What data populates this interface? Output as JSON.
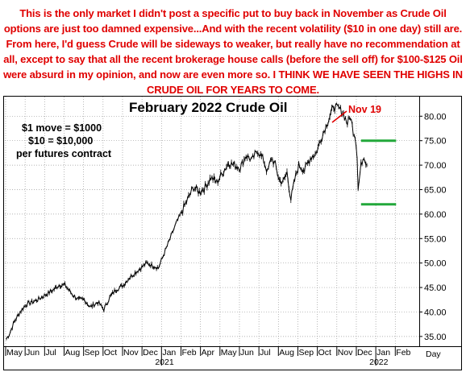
{
  "commentary": "This is the only market I didn't post a specific put to buy back in November as Crude Oil options are just too damned expensive...And with the recent volatility ($10 in one day) still are. From here, I'd guess Crude will be sideways to weaker, but really have no recommendation at all, except to say that all the recent brokerage house calls (before the sell off) for $100-$125 Oil were absurd in my opinion, and now are even more so. I THINK WE HAVE SEEN THE HIGHS IN CRUDE OIL FOR YEARS TO COME.",
  "colors": {
    "text_accent": "#e00000",
    "level_lines": "#22a83a",
    "price": "#000000",
    "grid": "#9a9a9a"
  },
  "chart_data": {
    "type": "line",
    "title": "February 2022 Crude Oil",
    "notes": [
      "$1 move = $1000",
      "$10 = $10,000",
      "per futures contract"
    ],
    "ylim": [
      33,
      84
    ],
    "y_ticks": [
      "35.00",
      "40.00",
      "45.00",
      "50.00",
      "55.00",
      "60.00",
      "65.00",
      "70.00",
      "75.00",
      "80.00"
    ],
    "y_tick_values": [
      35,
      40,
      45,
      50,
      55,
      60,
      65,
      70,
      75,
      80
    ],
    "x_months": [
      "May",
      "Jun",
      "Jul",
      "Aug",
      "Sep",
      "Oct",
      "Nov",
      "Dec",
      "Jan",
      "Feb",
      "Apr",
      "May",
      "Jun",
      "Jul",
      "Aug",
      "Sep",
      "Oct",
      "Nov",
      "Dec",
      "Jan",
      "Feb"
    ],
    "x_years": [
      "2021",
      "2022"
    ],
    "x_axis_label": "Day",
    "series": [
      {
        "month_index": [
          0,
          0.15,
          0.4,
          0.7,
          1.0,
          1.3,
          1.6,
          2.0,
          2.4,
          2.7,
          3.0,
          3.4,
          3.7,
          4.0,
          4.3,
          4.7,
          5.0,
          5.3,
          5.6,
          6.0,
          6.3,
          6.6,
          6.9,
          7.2,
          7.5,
          7.8,
          8.1,
          8.4,
          8.7,
          9.0,
          9.3,
          9.6,
          9.9,
          10.2,
          10.5,
          10.8,
          11.1,
          11.4,
          11.7,
          12.0,
          12.3,
          12.6,
          12.9,
          13.2,
          13.4,
          13.6,
          13.8,
          14.0,
          14.2,
          14.4,
          14.6,
          14.8,
          15.0,
          15.3,
          15.6,
          15.9,
          16.2,
          16.5,
          16.8,
          17.1,
          17.3,
          17.5,
          17.65,
          17.8,
          17.9,
          18.0,
          18.05,
          18.2,
          18.35,
          18.5
        ],
        "price": [
          34.5,
          35.5,
          38.0,
          40.0,
          41.5,
          42.0,
          42.5,
          43.5,
          44.5,
          45.5,
          45.5,
          43.5,
          42.5,
          42.5,
          41.0,
          42.0,
          40.5,
          43.0,
          44.5,
          45.5,
          47.0,
          48.0,
          49.0,
          50.0,
          49.5,
          49.0,
          52.0,
          55.0,
          58.0,
          60.5,
          63.0,
          65.5,
          64.5,
          65.5,
          67.5,
          66.5,
          68.5,
          70.5,
          70.0,
          69.5,
          72.0,
          71.0,
          73.0,
          71.0,
          68.5,
          71.5,
          70.0,
          67.0,
          66.5,
          68.5,
          63.0,
          67.0,
          70.0,
          69.0,
          71.5,
          72.5,
          76.0,
          79.0,
          82.0,
          81.5,
          80.5,
          78.5,
          80.0,
          77.0,
          76.0,
          72.0,
          65.0,
          70.0,
          72.0,
          70.0
        ]
      }
    ],
    "levels": [
      75,
      62
    ],
    "annotation": "Nov 19"
  }
}
